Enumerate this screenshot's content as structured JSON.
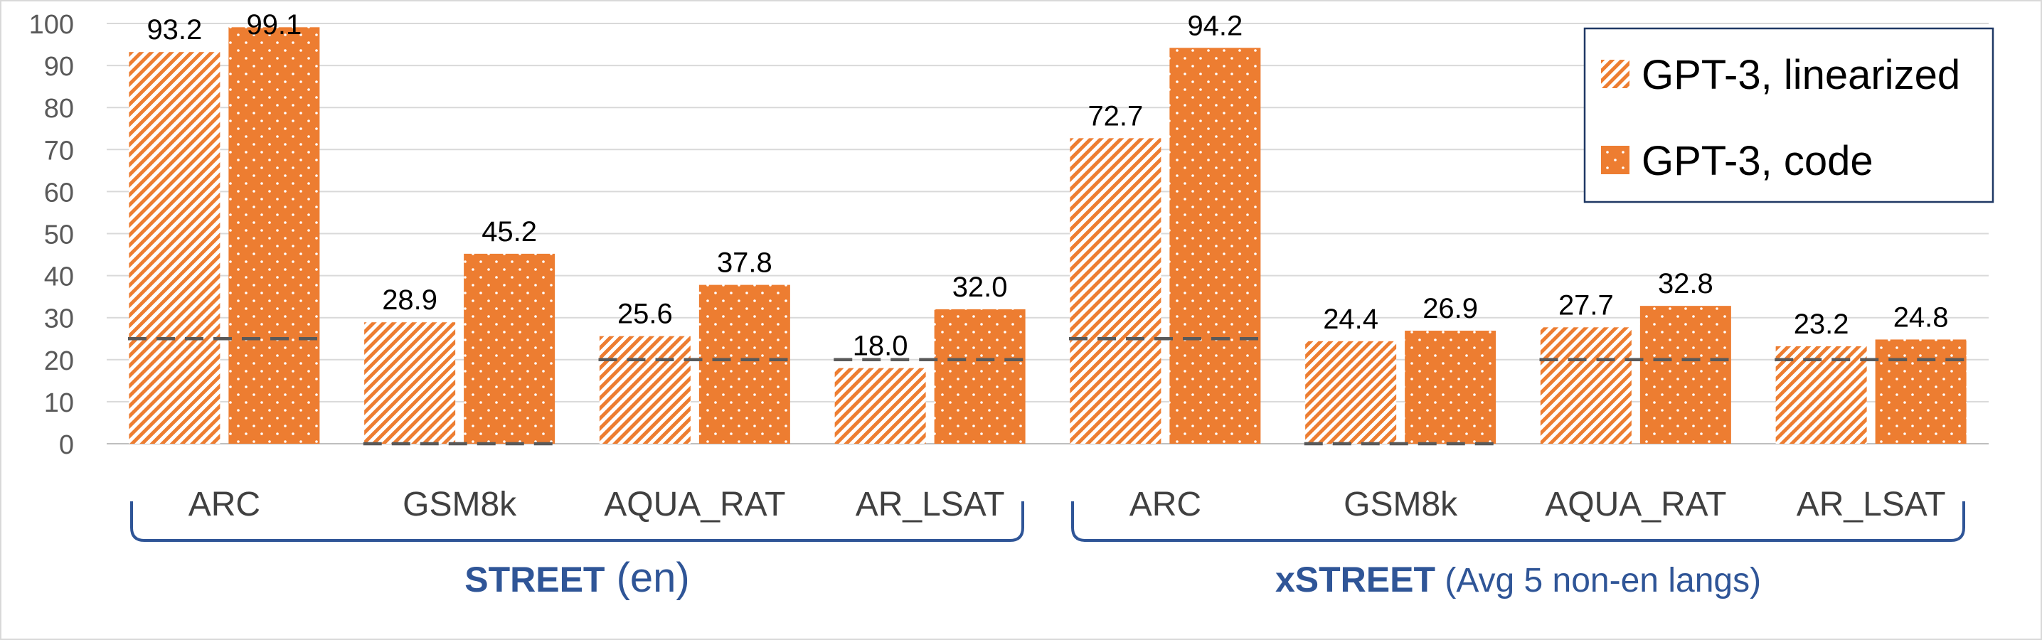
{
  "colors": {
    "accent": "#ED7D31",
    "gridline": "#d9d9d9",
    "baseline": "#bfbfbf",
    "random_baseline": "#595959",
    "group_label": "#2F5597",
    "legend_border": "#1F3864"
  },
  "chart_data": {
    "type": "bar",
    "title": "",
    "xlabel": "",
    "ylabel": "",
    "ylim": [
      0,
      100
    ],
    "yticks": [
      "0",
      "10",
      "20",
      "30",
      "40",
      "50",
      "60",
      "70",
      "80",
      "90",
      "100"
    ],
    "categories": [
      "ARC",
      "GSM8k",
      "AQUA_RAT",
      "AR_LSAT",
      "ARC",
      "GSM8k",
      "AQUA_RAT",
      "AR_LSAT"
    ],
    "series": [
      {
        "name": "GPT-3, linearized",
        "pattern": "diagonal-hatch",
        "values": [
          93.2,
          28.9,
          25.6,
          18.0,
          72.7,
          24.4,
          27.7,
          23.2
        ],
        "labels": [
          "93.2",
          "28.9",
          "25.6",
          "18.0",
          "72.7",
          "24.4",
          "27.7",
          "23.2"
        ]
      },
      {
        "name": "GPT-3, code",
        "pattern": "dotted",
        "values": [
          99.1,
          45.2,
          37.8,
          32.0,
          94.2,
          26.9,
          32.8,
          24.8
        ],
        "labels": [
          "99.1",
          "45.2",
          "37.8",
          "32.0",
          "94.2",
          "26.9",
          "32.8",
          "24.8"
        ]
      }
    ],
    "random_baseline": [
      25,
      0,
      20,
      20,
      25,
      0,
      20,
      20
    ],
    "groups": [
      {
        "bold": "STREET",
        "rest": " (en)",
        "categories": [
          0,
          1,
          2,
          3
        ]
      },
      {
        "bold": "xSTREET",
        "rest": " (Avg 5 non-en langs)",
        "categories": [
          4,
          5,
          6,
          7
        ]
      }
    ],
    "legend_position": "top-right",
    "grid": true
  }
}
